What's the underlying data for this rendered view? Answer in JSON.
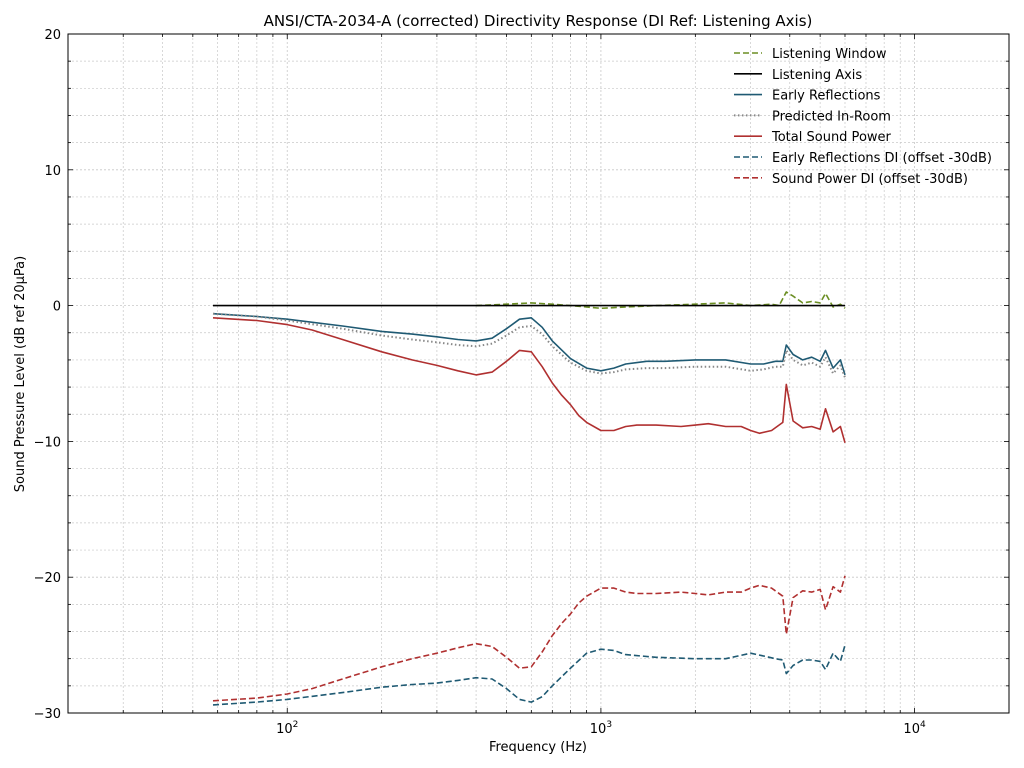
{
  "chart_data": {
    "type": "line",
    "title": "ANSI/CTA-2034-A (corrected) Directivity Response (DI Ref: Listening Axis)",
    "xlabel": "Frequency (Hz)",
    "ylabel": "Sound Pressure Level (dB ref 20μPa)",
    "xscale": "log",
    "xlim": [
      20,
      20000
    ],
    "ylim": [
      -30,
      20
    ],
    "grid": true,
    "legend_position": "top-right",
    "x_tick_labels": [
      {
        "value": 100,
        "base": "10",
        "exp": "2"
      },
      {
        "value": 1000,
        "base": "10",
        "exp": "3"
      },
      {
        "value": 10000,
        "base": "10",
        "exp": "4"
      }
    ],
    "y_ticks": [
      {
        "value": 20,
        "label": "20"
      },
      {
        "value": 10,
        "label": "10"
      },
      {
        "value": 0,
        "label": "0"
      },
      {
        "value": -10,
        "label": "−10"
      },
      {
        "value": -20,
        "label": "−20"
      },
      {
        "value": -30,
        "label": "−30"
      }
    ],
    "series": [
      {
        "name": "Listening Window",
        "color": "#6b8e23",
        "dash": "dashed",
        "x": [
          400,
          500,
          600,
          700,
          800,
          900,
          1000,
          1200,
          1500,
          2000,
          2500,
          3000,
          3500,
          3700,
          3900,
          4100,
          4400,
          4700,
          5000,
          5200,
          5500,
          5800,
          6000
        ],
        "y": [
          0.0,
          0.1,
          0.2,
          0.1,
          0.0,
          -0.1,
          -0.2,
          -0.1,
          0.0,
          0.1,
          0.2,
          0.0,
          0.1,
          0.0,
          1.0,
          0.7,
          0.2,
          0.3,
          0.2,
          0.9,
          -0.1,
          0.1,
          -0.2
        ]
      },
      {
        "name": "Listening Axis",
        "color": "#000000",
        "dash": "solid",
        "x": [
          58,
          6000
        ],
        "y": [
          0,
          0
        ]
      },
      {
        "name": "Early Reflections",
        "color": "#1f5a73",
        "dash": "solid",
        "x": [
          58,
          80,
          100,
          150,
          200,
          250,
          300,
          350,
          400,
          450,
          500,
          550,
          600,
          650,
          700,
          800,
          900,
          1000,
          1100,
          1200,
          1400,
          1600,
          2000,
          2500,
          3000,
          3300,
          3600,
          3800,
          3900,
          4100,
          4400,
          4700,
          5000,
          5200,
          5500,
          5800,
          6000
        ],
        "y": [
          -0.6,
          -0.8,
          -1.0,
          -1.5,
          -1.9,
          -2.1,
          -2.3,
          -2.5,
          -2.6,
          -2.4,
          -1.7,
          -1.0,
          -0.9,
          -1.6,
          -2.6,
          -3.9,
          -4.6,
          -4.8,
          -4.6,
          -4.3,
          -4.1,
          -4.1,
          -4.0,
          -4.0,
          -4.3,
          -4.3,
          -4.1,
          -4.1,
          -2.9,
          -3.6,
          -4.0,
          -3.8,
          -4.1,
          -3.3,
          -4.6,
          -4.0,
          -5.1
        ]
      },
      {
        "name": "Predicted In-Room",
        "color": "#888888",
        "dash": "dotted",
        "x": [
          58,
          80,
          100,
          150,
          200,
          250,
          300,
          350,
          400,
          450,
          500,
          550,
          600,
          650,
          700,
          800,
          900,
          1000,
          1100,
          1200,
          1400,
          1600,
          2000,
          2500,
          3000,
          3300,
          3600,
          3800,
          3900,
          4100,
          4400,
          4700,
          5000,
          5200,
          5500,
          5800,
          6000
        ],
        "y": [
          -0.6,
          -0.8,
          -1.1,
          -1.7,
          -2.2,
          -2.5,
          -2.7,
          -2.9,
          -3.0,
          -2.8,
          -2.2,
          -1.6,
          -1.5,
          -2.1,
          -3.0,
          -4.2,
          -4.8,
          -5.0,
          -4.9,
          -4.7,
          -4.6,
          -4.6,
          -4.5,
          -4.5,
          -4.8,
          -4.7,
          -4.5,
          -4.5,
          -3.3,
          -4.0,
          -4.4,
          -4.2,
          -4.5,
          -3.8,
          -5.0,
          -4.4,
          -5.3
        ]
      },
      {
        "name": "Total Sound Power",
        "color": "#b03030",
        "dash": "solid",
        "x": [
          58,
          80,
          100,
          120,
          150,
          200,
          250,
          300,
          350,
          400,
          450,
          500,
          550,
          600,
          650,
          700,
          750,
          800,
          850,
          900,
          1000,
          1100,
          1200,
          1300,
          1500,
          1800,
          2000,
          2200,
          2500,
          2800,
          3000,
          3200,
          3500,
          3800,
          3900,
          4100,
          4400,
          4700,
          5000,
          5200,
          5500,
          5800,
          6000
        ],
        "y": [
          -0.9,
          -1.1,
          -1.4,
          -1.8,
          -2.5,
          -3.4,
          -4.0,
          -4.4,
          -4.8,
          -5.1,
          -4.9,
          -4.1,
          -3.3,
          -3.4,
          -4.5,
          -5.7,
          -6.6,
          -7.3,
          -8.1,
          -8.6,
          -9.2,
          -9.2,
          -8.9,
          -8.8,
          -8.8,
          -8.9,
          -8.8,
          -8.7,
          -8.9,
          -8.9,
          -9.2,
          -9.4,
          -9.2,
          -8.6,
          -5.8,
          -8.5,
          -9.0,
          -8.9,
          -9.1,
          -7.6,
          -9.3,
          -8.9,
          -10.1
        ]
      },
      {
        "name": "Early Reflections DI (offset -30dB)",
        "color": "#1f5a73",
        "dash": "dashed",
        "x": [
          58,
          80,
          100,
          150,
          200,
          250,
          300,
          350,
          400,
          450,
          500,
          550,
          600,
          650,
          700,
          800,
          900,
          1000,
          1100,
          1200,
          1500,
          2000,
          2500,
          3000,
          3300,
          3600,
          3800,
          3900,
          4100,
          4400,
          4700,
          5000,
          5200,
          5500,
          5800,
          6000
        ],
        "y": [
          -29.4,
          -29.2,
          -29.0,
          -28.5,
          -28.1,
          -27.9,
          -27.8,
          -27.6,
          -27.4,
          -27.5,
          -28.2,
          -29.0,
          -29.2,
          -28.8,
          -28.0,
          -26.7,
          -25.6,
          -25.3,
          -25.4,
          -25.7,
          -25.9,
          -26.0,
          -26.0,
          -25.6,
          -25.8,
          -26.0,
          -26.1,
          -27.1,
          -26.5,
          -26.1,
          -26.1,
          -26.2,
          -26.8,
          -25.6,
          -26.2,
          -25.0
        ]
      },
      {
        "name": "Sound Power DI (offset -30dB)",
        "color": "#b03030",
        "dash": "dashed",
        "x": [
          58,
          80,
          100,
          120,
          150,
          200,
          250,
          300,
          350,
          400,
          450,
          500,
          550,
          600,
          650,
          700,
          750,
          800,
          850,
          900,
          1000,
          1100,
          1200,
          1300,
          1500,
          1800,
          2000,
          2200,
          2500,
          2800,
          3000,
          3200,
          3500,
          3800,
          3900,
          4100,
          4400,
          4700,
          5000,
          5200,
          5500,
          5800,
          6000
        ],
        "y": [
          -29.1,
          -28.9,
          -28.6,
          -28.2,
          -27.5,
          -26.6,
          -26.0,
          -25.6,
          -25.2,
          -24.9,
          -25.1,
          -25.9,
          -26.7,
          -26.6,
          -25.5,
          -24.3,
          -23.4,
          -22.7,
          -21.9,
          -21.4,
          -20.8,
          -20.8,
          -21.1,
          -21.2,
          -21.2,
          -21.1,
          -21.2,
          -21.3,
          -21.1,
          -21.1,
          -20.8,
          -20.6,
          -20.8,
          -21.4,
          -24.2,
          -21.5,
          -21.0,
          -21.1,
          -20.9,
          -22.4,
          -20.7,
          -21.1,
          -19.9
        ]
      }
    ]
  }
}
